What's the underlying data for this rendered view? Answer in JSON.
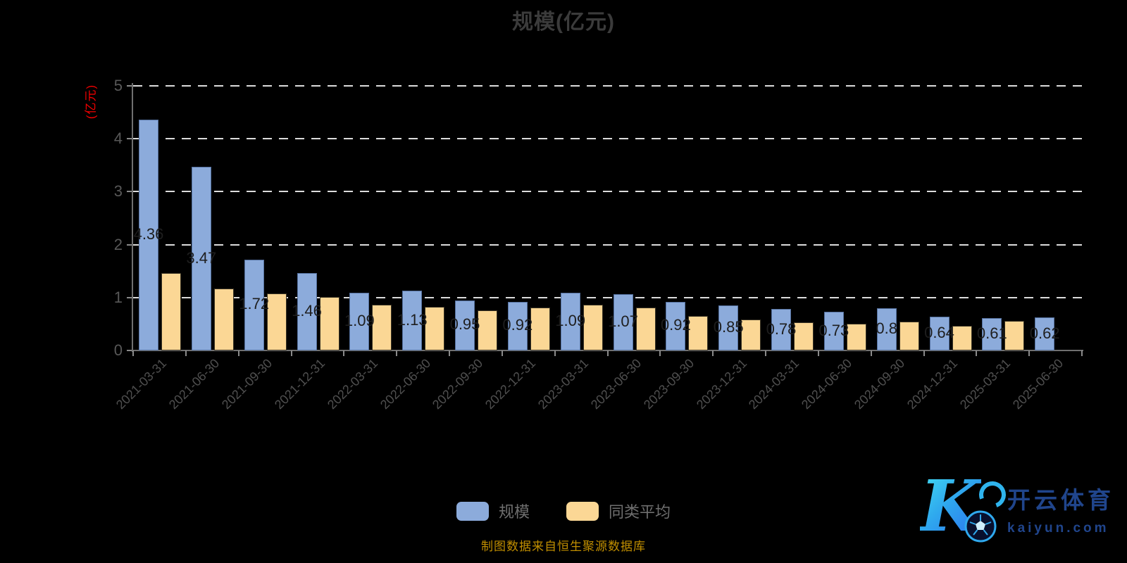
{
  "title": "规模(亿元)",
  "y_axis_label": "(亿元)",
  "y_ticks": [
    0,
    1,
    2,
    3,
    4,
    5
  ],
  "chart_data": {
    "type": "bar",
    "title": "规模(亿元)",
    "xlabel": "",
    "ylabel": "(亿元)",
    "ylim": [
      0,
      5
    ],
    "grid": "horizontal-dashed",
    "legend_position": "bottom",
    "categories": [
      "2021-03-31",
      "2021-06-30",
      "2021-09-30",
      "2021-12-31",
      "2022-03-31",
      "2022-06-30",
      "2022-09-30",
      "2022-12-31",
      "2023-03-31",
      "2023-06-30",
      "2023-09-30",
      "2023-12-31",
      "2024-03-31",
      "2024-06-30",
      "2024-09-30",
      "2024-12-31",
      "2025-03-31",
      "2025-06-30"
    ],
    "series": [
      {
        "name": "规模",
        "color": "#8CABDB",
        "border_color": "#55719f",
        "values": [
          4.36,
          3.47,
          1.72,
          1.46,
          1.09,
          1.13,
          0.95,
          0.92,
          1.09,
          1.07,
          0.92,
          0.85,
          0.78,
          0.73,
          0.8,
          0.64,
          0.61,
          0.62
        ],
        "data_labels": [
          "4.36",
          "3.47",
          "1.72",
          "1.46",
          "1.09",
          "1.13",
          "0.95",
          "0.92",
          "1.09",
          "1.07",
          "0.92",
          "0.85",
          "0.78",
          "0.73",
          "0.8",
          "0.64",
          "0.61",
          "0.62"
        ]
      },
      {
        "name": "同类平均",
        "color": "#FBD795",
        "border_color": "#3a3425",
        "values": [
          1.46,
          1.17,
          1.08,
          1.01,
          0.86,
          0.83,
          0.76,
          0.81,
          0.87,
          0.81,
          0.65,
          0.59,
          0.53,
          0.51,
          0.54,
          0.46,
          0.56,
          null
        ],
        "data_labels": []
      }
    ]
  },
  "legend": {
    "items": [
      {
        "label": "规模"
      },
      {
        "label": "同类平均"
      }
    ]
  },
  "footer": {
    "source_text": "制图数据来自恒生聚源数据库"
  },
  "brand": {
    "letter": "K",
    "name_cn": "开云体育",
    "domain": "kaiyun.com",
    "icon": "soccer-ball-icon"
  },
  "colors": {
    "background": "#000000",
    "title_text": "#3b3b3b",
    "bar_scale": "#8CABDB",
    "bar_average": "#FBD795",
    "grid_dash": "#dcdcdc",
    "axis_line": "#6f6f6f",
    "axis_unit_label": "#f20000",
    "footer_text": "#c08e00",
    "brand_blue": "#20458c"
  }
}
